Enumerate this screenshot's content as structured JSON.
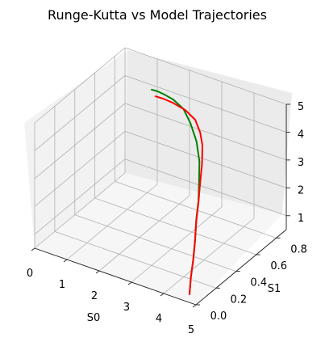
{
  "chart_data": {
    "type": "line3d",
    "title": "Runge-Kutta vs Model Trajectories",
    "xlabel": "S0",
    "ylabel": "S1",
    "zlabel": "",
    "xlim": [
      0,
      5
    ],
    "ylim": [
      0,
      0.9
    ],
    "zlim": [
      0.5,
      5
    ],
    "xticks": [
      "0",
      "1",
      "2",
      "3",
      "4",
      "5"
    ],
    "yticks": [
      "0.0",
      "0.2",
      "0.4",
      "0.6",
      "0.8"
    ],
    "zticks": [
      "1",
      "2",
      "3",
      "4",
      "5"
    ],
    "grid": true,
    "series": [
      {
        "color": "#008000",
        "x": [
          4.8,
          4.75,
          4.7,
          4.6,
          4.45,
          4.3,
          4.1,
          3.8,
          3.4,
          2.9,
          2.4,
          1.9,
          1.5,
          1.2,
          0.95
        ],
        "y": [
          0.0,
          0.03,
          0.07,
          0.12,
          0.18,
          0.25,
          0.32,
          0.42,
          0.52,
          0.62,
          0.71,
          0.77,
          0.81,
          0.84,
          0.86
        ],
        "z": [
          0.8,
          1.3,
          1.8,
          2.3,
          2.8,
          3.2,
          3.55,
          3.9,
          4.15,
          4.3,
          4.35,
          4.3,
          4.2,
          4.1,
          4.0
        ]
      },
      {
        "color": "#ff0000",
        "x": [
          4.8,
          4.75,
          4.7,
          4.6,
          4.45,
          4.3,
          4.1,
          3.85,
          3.55,
          3.2,
          2.8,
          2.3,
          1.8,
          1.4,
          1.1
        ],
        "y": [
          0.0,
          0.03,
          0.07,
          0.12,
          0.18,
          0.25,
          0.33,
          0.43,
          0.53,
          0.62,
          0.7,
          0.76,
          0.8,
          0.83,
          0.85
        ],
        "z": [
          0.8,
          1.3,
          1.8,
          2.3,
          2.75,
          3.15,
          3.5,
          3.8,
          4.05,
          4.1,
          4.15,
          4.12,
          4.05,
          3.95,
          3.85
        ]
      }
    ]
  }
}
